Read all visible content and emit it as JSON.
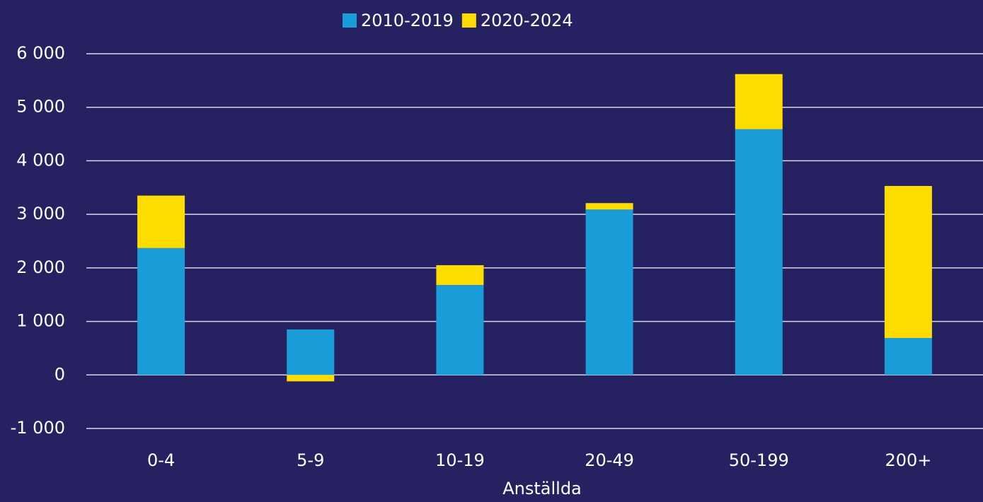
{
  "chart_data": {
    "type": "stacked_bar",
    "categories": [
      "0-4",
      "5-9",
      "10-19",
      "20-49",
      "50-199",
      "200+"
    ],
    "series": [
      {
        "name": "2010-2019",
        "color": "#1a9cd8",
        "values": [
          2370,
          850,
          1680,
          3090,
          4590,
          690
        ]
      },
      {
        "name": "2020-2024",
        "color": "#ffdc00",
        "values": [
          980,
          -120,
          370,
          120,
          1030,
          2840
        ]
      }
    ],
    "xlabel": "Anställda",
    "ylim": [
      -1000,
      6000
    ],
    "yticks": [
      {
        "value": -1000,
        "label": "-1 000"
      },
      0,
      {
        "value": 1000,
        "label": "1 000"
      },
      {
        "value": 2000,
        "label": "2 000"
      },
      {
        "value": 3000,
        "label": "3 000"
      },
      {
        "value": 4000,
        "label": "4 000"
      },
      {
        "value": 5000,
        "label": "5 000"
      },
      {
        "value": 6000,
        "label": "6 000"
      }
    ],
    "grid": true
  }
}
